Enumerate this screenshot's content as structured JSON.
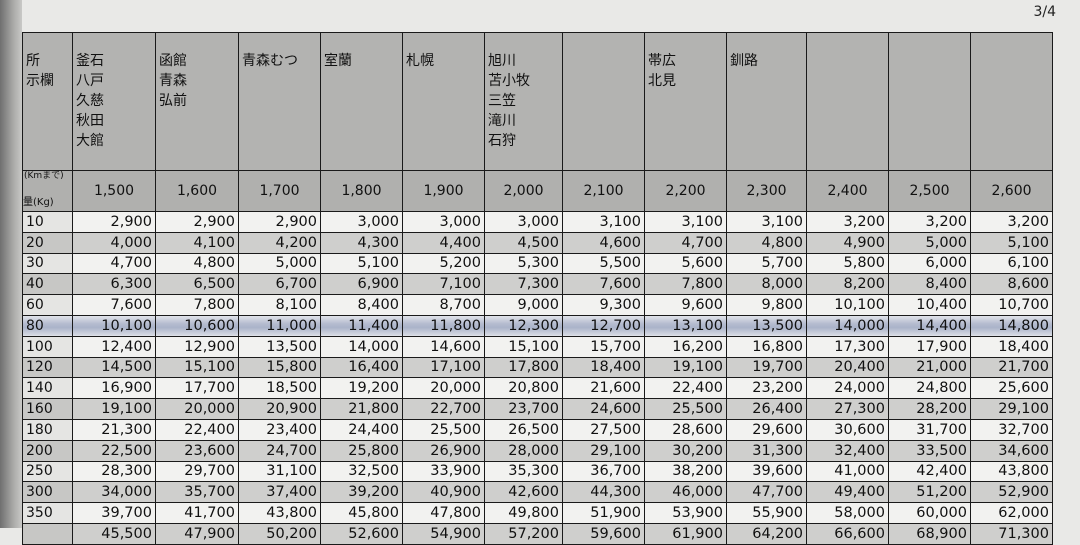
{
  "page_number": "3/4",
  "table": {
    "corner_label": "所\n示欄",
    "km_label": "(Kmまで)",
    "weight_label": "量(Kg)",
    "destinations": [
      "釜石\n八戸\n久慈\n秋田\n大館",
      "函館\n青森\n弘前",
      "青森むつ",
      "室蘭",
      "札幌",
      "旭川\n苫小牧\n三笠\n滝川\n石狩",
      "",
      "帯広\n北見",
      "釧路",
      "",
      "",
      ""
    ],
    "distances": [
      "1,500",
      "1,600",
      "1,700",
      "1,800",
      "1,900",
      "2,000",
      "2,100",
      "2,200",
      "2,300",
      "2,400",
      "2,500",
      "2,600"
    ],
    "highlighted_row": "80",
    "rows": [
      {
        "weight": "10",
        "prices": [
          "2,900",
          "2,900",
          "2,900",
          "3,000",
          "3,000",
          "3,000",
          "3,100",
          "3,100",
          "3,100",
          "3,200",
          "3,200",
          "3,200"
        ]
      },
      {
        "weight": "20",
        "prices": [
          "4,000",
          "4,100",
          "4,200",
          "4,300",
          "4,400",
          "4,500",
          "4,600",
          "4,700",
          "4,800",
          "4,900",
          "5,000",
          "5,100"
        ]
      },
      {
        "weight": "30",
        "prices": [
          "4,700",
          "4,800",
          "5,000",
          "5,100",
          "5,200",
          "5,300",
          "5,500",
          "5,600",
          "5,700",
          "5,800",
          "6,000",
          "6,100"
        ]
      },
      {
        "weight": "40",
        "prices": [
          "6,300",
          "6,500",
          "6,700",
          "6,900",
          "7,100",
          "7,300",
          "7,600",
          "7,800",
          "8,000",
          "8,200",
          "8,400",
          "8,600"
        ]
      },
      {
        "weight": "60",
        "prices": [
          "7,600",
          "7,800",
          "8,100",
          "8,400",
          "8,700",
          "9,000",
          "9,300",
          "9,600",
          "9,800",
          "10,100",
          "10,400",
          "10,700"
        ]
      },
      {
        "weight": "80",
        "prices": [
          "10,100",
          "10,600",
          "11,000",
          "11,400",
          "11,800",
          "12,300",
          "12,700",
          "13,100",
          "13,500",
          "14,000",
          "14,400",
          "14,800"
        ]
      },
      {
        "weight": "100",
        "prices": [
          "12,400",
          "12,900",
          "13,500",
          "14,000",
          "14,600",
          "15,100",
          "15,700",
          "16,200",
          "16,800",
          "17,300",
          "17,900",
          "18,400"
        ]
      },
      {
        "weight": "120",
        "prices": [
          "14,500",
          "15,100",
          "15,800",
          "16,400",
          "17,100",
          "17,800",
          "18,400",
          "19,100",
          "19,700",
          "20,400",
          "21,000",
          "21,700"
        ]
      },
      {
        "weight": "140",
        "prices": [
          "16,900",
          "17,700",
          "18,500",
          "19,200",
          "20,000",
          "20,800",
          "21,600",
          "22,400",
          "23,200",
          "24,000",
          "24,800",
          "25,600"
        ]
      },
      {
        "weight": "160",
        "prices": [
          "19,100",
          "20,000",
          "20,900",
          "21,800",
          "22,700",
          "23,700",
          "24,600",
          "25,500",
          "26,400",
          "27,300",
          "28,200",
          "29,100"
        ]
      },
      {
        "weight": "180",
        "prices": [
          "21,300",
          "22,400",
          "23,400",
          "24,400",
          "25,500",
          "26,500",
          "27,500",
          "28,600",
          "29,600",
          "30,600",
          "31,700",
          "32,700"
        ]
      },
      {
        "weight": "200",
        "prices": [
          "22,500",
          "23,600",
          "24,700",
          "25,800",
          "26,900",
          "28,000",
          "29,100",
          "30,200",
          "31,300",
          "32,400",
          "33,500",
          "34,600"
        ]
      },
      {
        "weight": "250",
        "prices": [
          "28,300",
          "29,700",
          "31,100",
          "32,500",
          "33,900",
          "35,300",
          "36,700",
          "38,200",
          "39,600",
          "41,000",
          "42,400",
          "43,800"
        ]
      },
      {
        "weight": "300",
        "prices": [
          "34,000",
          "35,700",
          "37,400",
          "39,200",
          "40,900",
          "42,600",
          "44,300",
          "46,000",
          "47,700",
          "49,400",
          "51,200",
          "52,900"
        ]
      },
      {
        "weight": "350",
        "prices": [
          "39,700",
          "41,700",
          "43,800",
          "45,800",
          "47,800",
          "49,800",
          "51,900",
          "53,900",
          "55,900",
          "58,000",
          "60,000",
          "62,000"
        ]
      },
      {
        "weight": "",
        "prices": [
          "45,500",
          "47,900",
          "50,200",
          "52,600",
          "54,900",
          "57,200",
          "59,600",
          "61,900",
          "64,200",
          "66,600",
          "68,900",
          "71,300"
        ]
      }
    ]
  }
}
